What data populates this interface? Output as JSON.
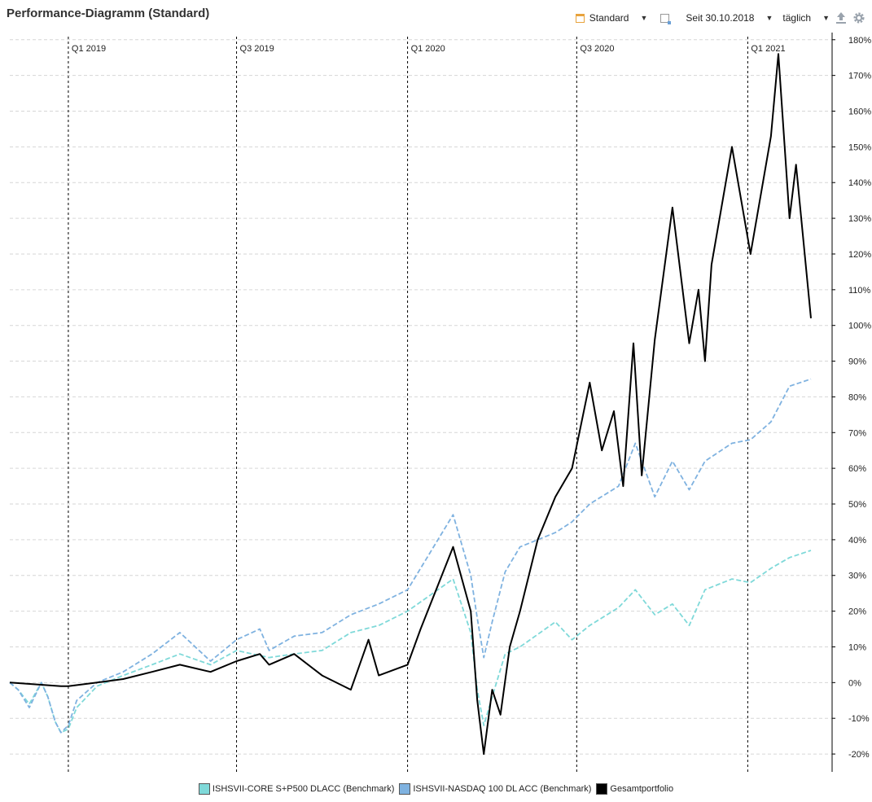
{
  "header": {
    "title": "Performance-Diagramm (Standard)",
    "view_label": "Standard",
    "period_label": "Seit 30.10.2018",
    "interval_label": "täglich",
    "icons": [
      "calendar-icon",
      "date-range-icon",
      "export-icon",
      "settings-icon"
    ]
  },
  "chart_data": {
    "type": "line",
    "title": "",
    "xlabel": "",
    "ylabel": "",
    "x_range": [
      "2018-10-30",
      "2021-03-10"
    ],
    "ylim": [
      -25,
      182
    ],
    "y_ticks": [
      -20,
      -10,
      0,
      10,
      20,
      30,
      40,
      50,
      60,
      70,
      80,
      90,
      100,
      110,
      120,
      130,
      140,
      150,
      160,
      170,
      180
    ],
    "y_tick_suffix": "%",
    "grid": "horizontal dashed",
    "legend_position": "bottom",
    "quarter_markers": [
      {
        "label": "Q1 2019",
        "date": "2019-01-01"
      },
      {
        "label": "Q3 2019",
        "date": "2019-07-01"
      },
      {
        "label": "Q1 2020",
        "date": "2020-01-01"
      },
      {
        "label": "Q3 2020",
        "date": "2020-07-01"
      },
      {
        "label": "Q1 2021",
        "date": "2021-01-01"
      }
    ],
    "series": [
      {
        "name": "ISHSVII-CORE S+P500 DLACC (Benchmark)",
        "color": "#7fd9d9",
        "style": "dashed",
        "points": [
          [
            "2018-10-30",
            0
          ],
          [
            "2018-11-08",
            -2
          ],
          [
            "2018-11-20",
            -6
          ],
          [
            "2018-12-03",
            0
          ],
          [
            "2018-12-10",
            -4
          ],
          [
            "2018-12-18",
            -11
          ],
          [
            "2018-12-24",
            -14
          ],
          [
            "2019-01-01",
            -13
          ],
          [
            "2019-01-10",
            -7
          ],
          [
            "2019-02-01",
            -1
          ],
          [
            "2019-03-01",
            2
          ],
          [
            "2019-04-01",
            5
          ],
          [
            "2019-05-01",
            8
          ],
          [
            "2019-06-03",
            5
          ],
          [
            "2019-07-01",
            9
          ],
          [
            "2019-08-05",
            7
          ],
          [
            "2019-09-01",
            8
          ],
          [
            "2019-10-01",
            9
          ],
          [
            "2019-11-01",
            14
          ],
          [
            "2019-12-01",
            16
          ],
          [
            "2020-01-01",
            20
          ],
          [
            "2020-02-19",
            29
          ],
          [
            "2020-03-09",
            14
          ],
          [
            "2020-03-16",
            -2
          ],
          [
            "2020-03-23",
            -12
          ],
          [
            "2020-04-01",
            -4
          ],
          [
            "2020-04-15",
            8
          ],
          [
            "2020-05-01",
            10
          ],
          [
            "2020-06-08",
            17
          ],
          [
            "2020-06-26",
            12
          ],
          [
            "2020-07-15",
            16
          ],
          [
            "2020-08-15",
            21
          ],
          [
            "2020-09-02",
            26
          ],
          [
            "2020-09-23",
            19
          ],
          [
            "2020-10-12",
            22
          ],
          [
            "2020-10-30",
            16
          ],
          [
            "2020-11-16",
            26
          ],
          [
            "2020-12-15",
            29
          ],
          [
            "2021-01-04",
            28
          ],
          [
            "2021-01-26",
            32
          ],
          [
            "2021-02-15",
            35
          ],
          [
            "2021-03-10",
            37
          ]
        ]
      },
      {
        "name": "ISHSVII-NASDAQ 100 DL ACC (Benchmark)",
        "color": "#7fb2e0",
        "style": "dashed",
        "points": [
          [
            "2018-10-30",
            0
          ],
          [
            "2018-11-08",
            -2
          ],
          [
            "2018-11-20",
            -7
          ],
          [
            "2018-12-03",
            0
          ],
          [
            "2018-12-10",
            -4
          ],
          [
            "2018-12-18",
            -11
          ],
          [
            "2018-12-24",
            -14
          ],
          [
            "2019-01-01",
            -12
          ],
          [
            "2019-01-10",
            -5
          ],
          [
            "2019-02-01",
            0
          ],
          [
            "2019-03-01",
            3
          ],
          [
            "2019-04-01",
            8
          ],
          [
            "2019-05-01",
            14
          ],
          [
            "2019-06-03",
            6
          ],
          [
            "2019-07-01",
            12
          ],
          [
            "2019-07-26",
            15
          ],
          [
            "2019-08-05",
            9
          ],
          [
            "2019-09-01",
            13
          ],
          [
            "2019-10-01",
            14
          ],
          [
            "2019-11-01",
            19
          ],
          [
            "2019-12-01",
            22
          ],
          [
            "2020-01-01",
            26
          ],
          [
            "2020-02-19",
            47
          ],
          [
            "2020-03-09",
            30
          ],
          [
            "2020-03-16",
            18
          ],
          [
            "2020-03-23",
            7
          ],
          [
            "2020-04-01",
            17
          ],
          [
            "2020-04-15",
            31
          ],
          [
            "2020-05-01",
            38
          ],
          [
            "2020-06-08",
            42
          ],
          [
            "2020-06-26",
            45
          ],
          [
            "2020-07-15",
            50
          ],
          [
            "2020-08-15",
            55
          ],
          [
            "2020-09-02",
            67
          ],
          [
            "2020-09-23",
            52
          ],
          [
            "2020-10-12",
            62
          ],
          [
            "2020-10-30",
            54
          ],
          [
            "2020-11-16",
            62
          ],
          [
            "2020-12-15",
            67
          ],
          [
            "2021-01-04",
            68
          ],
          [
            "2021-01-26",
            73
          ],
          [
            "2021-02-15",
            83
          ],
          [
            "2021-03-10",
            85
          ]
        ]
      },
      {
        "name": "Gesamtportfolio",
        "color": "#000000",
        "style": "solid",
        "points": [
          [
            "2018-10-30",
            0
          ],
          [
            "2018-12-24",
            -1
          ],
          [
            "2019-01-01",
            -1
          ],
          [
            "2019-02-01",
            0
          ],
          [
            "2019-03-01",
            1
          ],
          [
            "2019-04-01",
            3
          ],
          [
            "2019-05-01",
            5
          ],
          [
            "2019-06-03",
            3
          ],
          [
            "2019-07-01",
            6
          ],
          [
            "2019-07-26",
            8
          ],
          [
            "2019-08-05",
            5
          ],
          [
            "2019-09-01",
            8
          ],
          [
            "2019-10-01",
            2
          ],
          [
            "2019-11-01",
            -2
          ],
          [
            "2019-11-20",
            12
          ],
          [
            "2019-12-01",
            2
          ],
          [
            "2020-01-01",
            5
          ],
          [
            "2020-01-15",
            15
          ],
          [
            "2020-02-19",
            38
          ],
          [
            "2020-03-09",
            20
          ],
          [
            "2020-03-16",
            -5
          ],
          [
            "2020-03-23",
            -20
          ],
          [
            "2020-04-01",
            -2
          ],
          [
            "2020-04-10",
            -9
          ],
          [
            "2020-04-20",
            10
          ],
          [
            "2020-05-01",
            20
          ],
          [
            "2020-05-20",
            40
          ],
          [
            "2020-06-08",
            52
          ],
          [
            "2020-06-26",
            60
          ],
          [
            "2020-07-15",
            84
          ],
          [
            "2020-07-28",
            65
          ],
          [
            "2020-08-10",
            76
          ],
          [
            "2020-08-20",
            55
          ],
          [
            "2020-08-31",
            95
          ],
          [
            "2020-09-09",
            58
          ],
          [
            "2020-09-23",
            96
          ],
          [
            "2020-10-12",
            133
          ],
          [
            "2020-10-30",
            95
          ],
          [
            "2020-11-09",
            110
          ],
          [
            "2020-11-16",
            90
          ],
          [
            "2020-11-23",
            117
          ],
          [
            "2020-12-15",
            150
          ],
          [
            "2021-01-04",
            120
          ],
          [
            "2021-01-26",
            153
          ],
          [
            "2021-02-03",
            176
          ],
          [
            "2021-02-15",
            130
          ],
          [
            "2021-02-22",
            145
          ],
          [
            "2021-03-10",
            102
          ]
        ]
      }
    ]
  }
}
